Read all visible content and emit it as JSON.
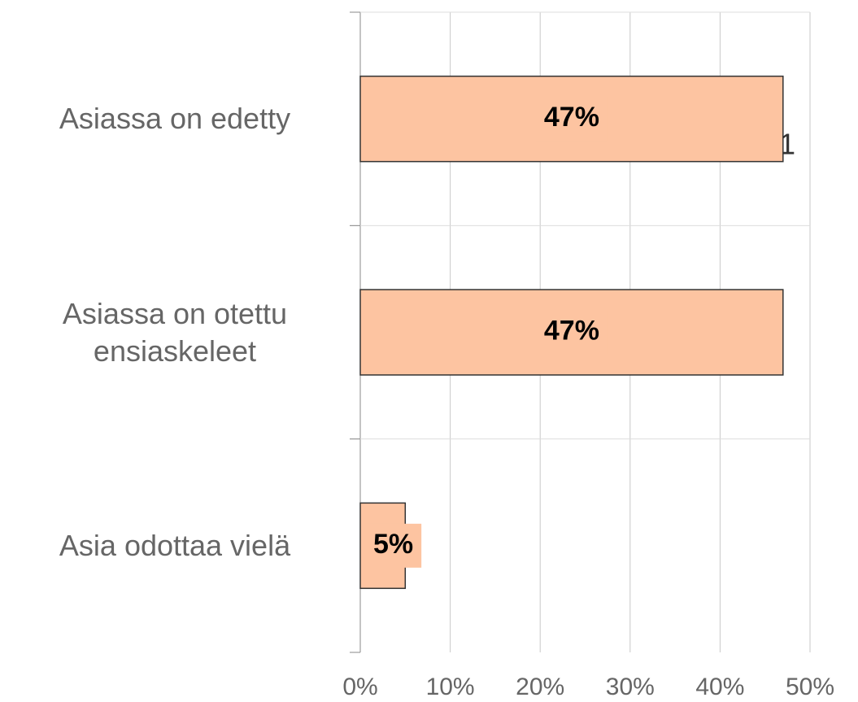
{
  "chart_data": {
    "type": "bar",
    "orientation": "horizontal",
    "categories": [
      "Asiassa on edetty",
      "Asiassa on otettu ensiaskeleet",
      "Asia odottaa vielä"
    ],
    "values": [
      47,
      47,
      5
    ],
    "value_labels": [
      "47%",
      "47%",
      "5%"
    ],
    "color": "#fdc4a1",
    "xlim": [
      0,
      50
    ],
    "xticks": [
      {
        "value": 0,
        "label": "0%"
      },
      {
        "value": 10,
        "label": "10%"
      },
      {
        "value": 20,
        "label": "20%"
      },
      {
        "value": 30,
        "label": "30%"
      },
      {
        "value": 40,
        "label": "40%"
      },
      {
        "value": 50,
        "label": "50%"
      }
    ],
    "grid": true,
    "annotation": "1"
  }
}
